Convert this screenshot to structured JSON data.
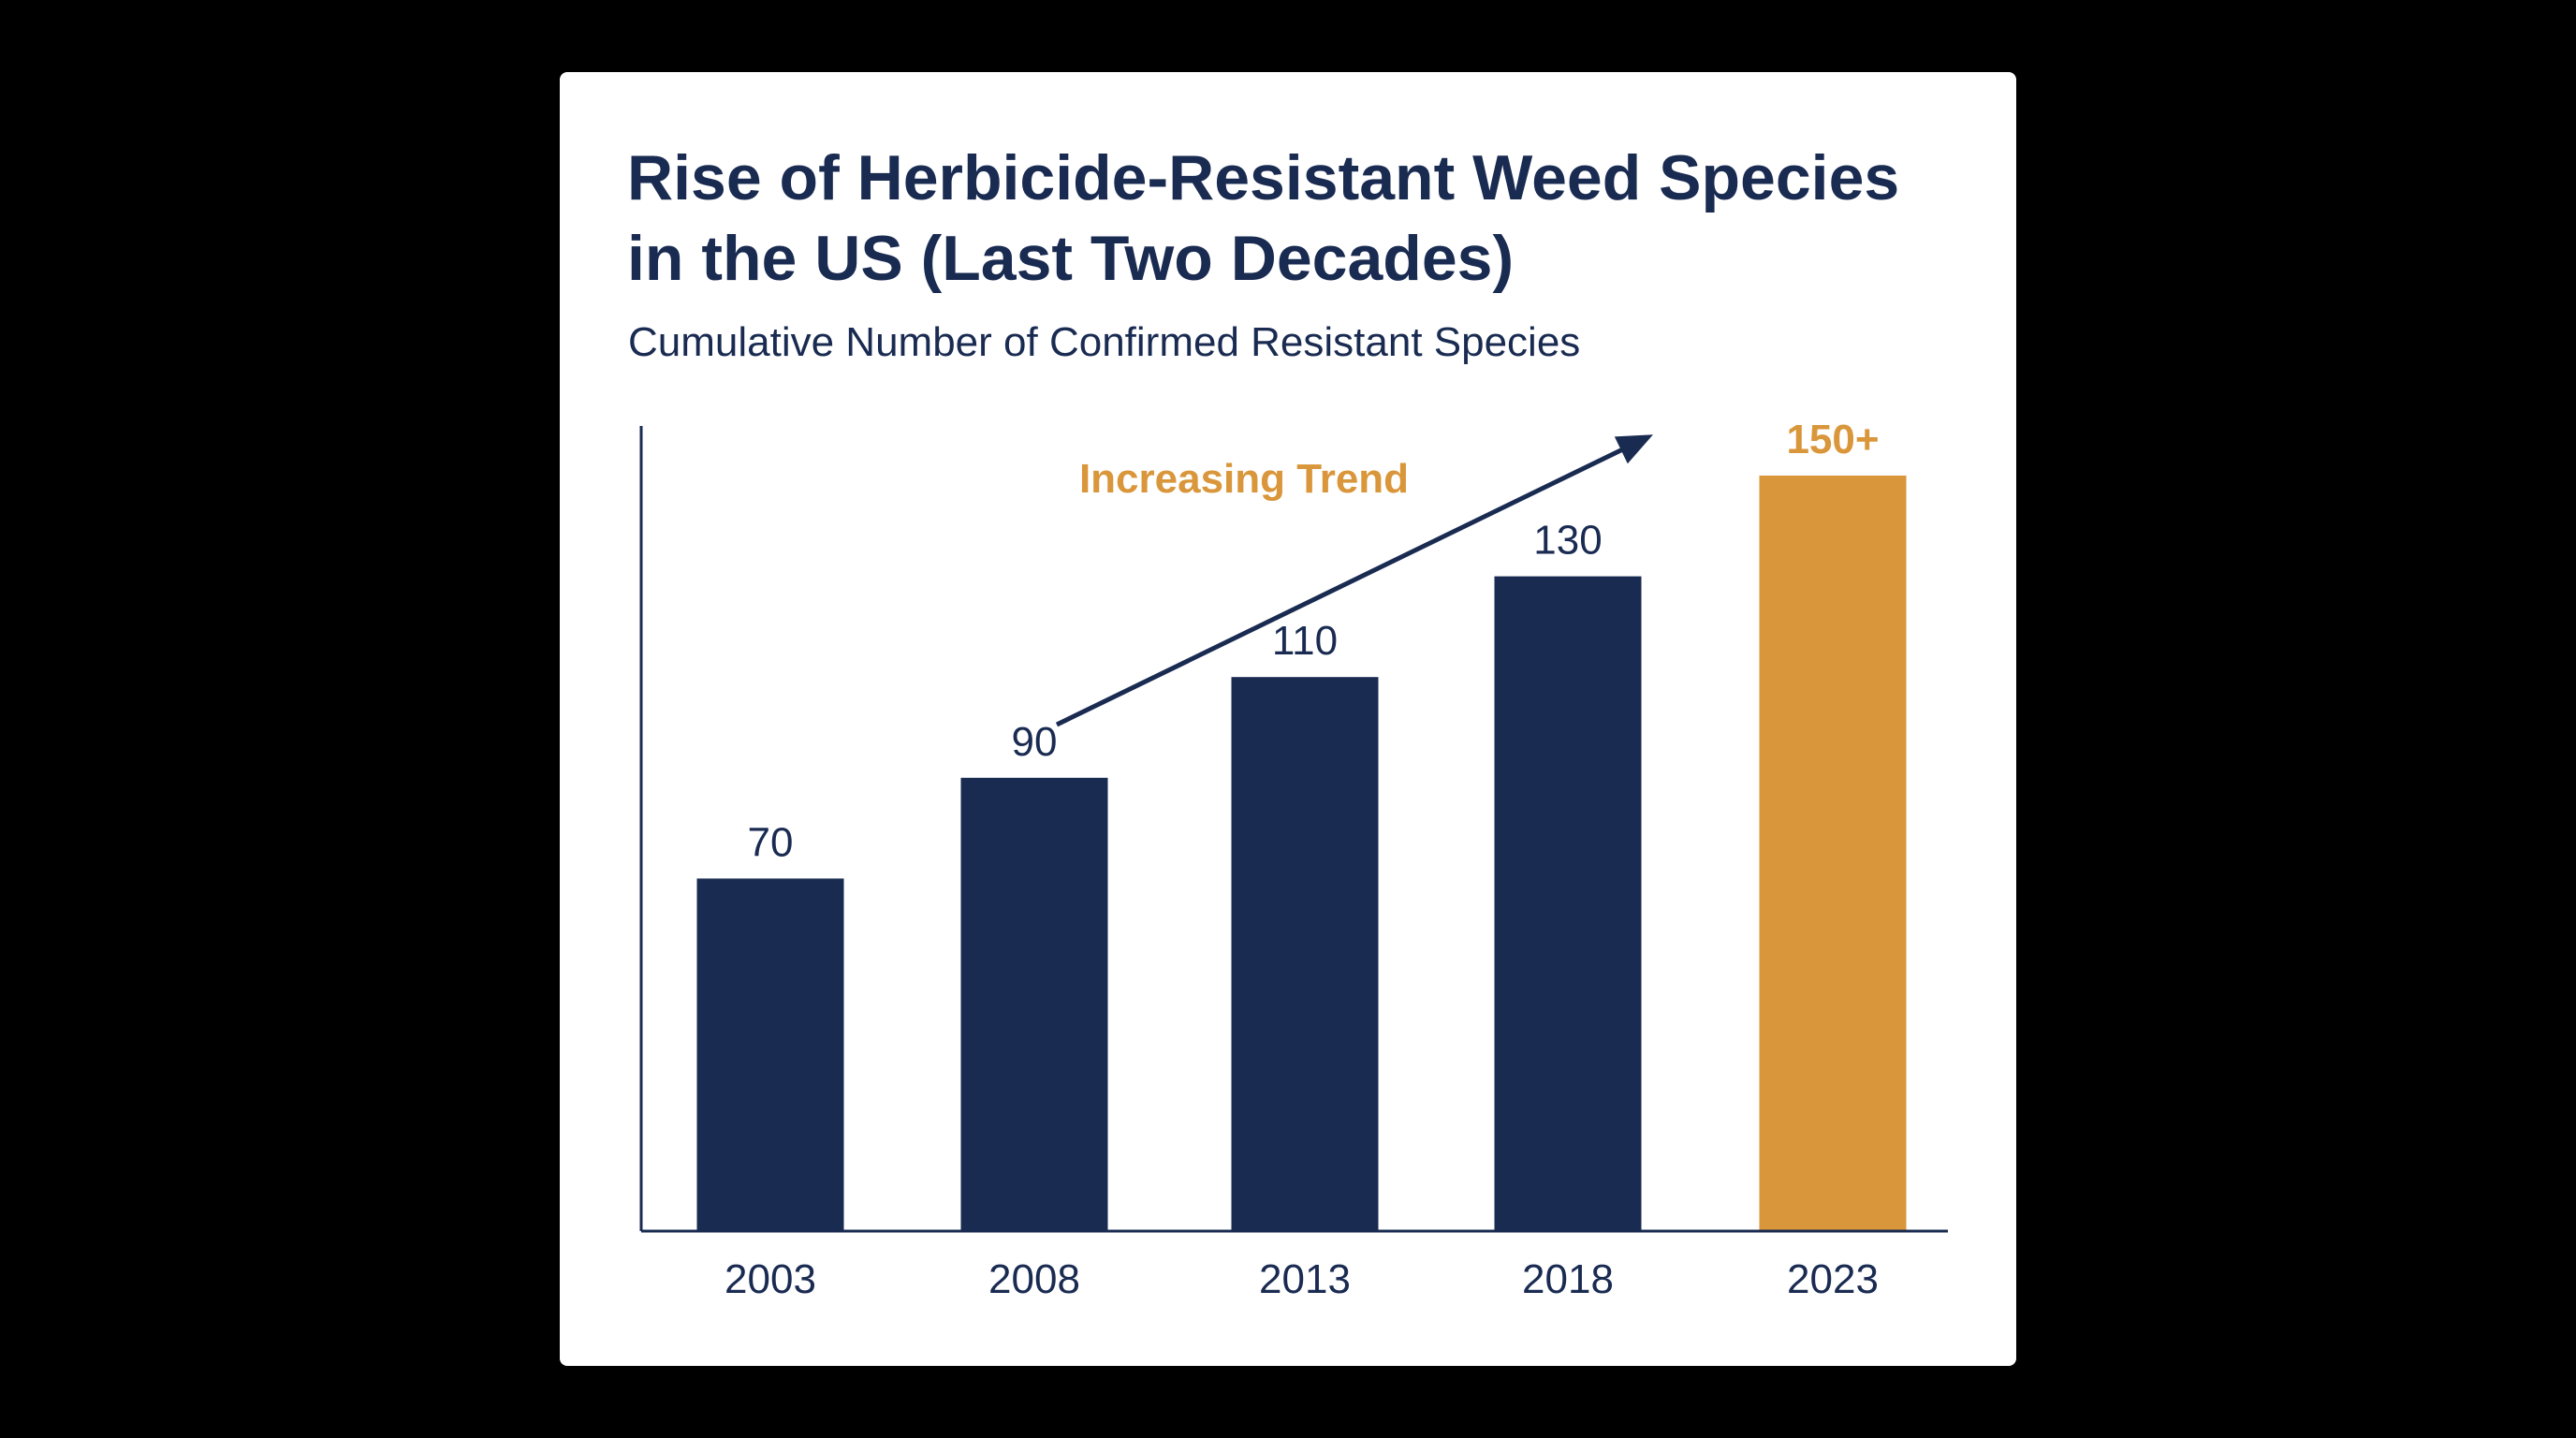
{
  "colors": {
    "background": "#000000",
    "card": "#ffffff",
    "navy": "#1a2b52",
    "accent": "#d9963a"
  },
  "chart_data": {
    "type": "bar",
    "title": "Rise of Herbicide-Resistant Weed Species in the US (Last Two Decades)",
    "subtitle": "Cumulative Number of Confirmed Resistant Species",
    "xlabel": "",
    "ylabel": "",
    "ylim": [
      0,
      160
    ],
    "categories": [
      "2003",
      "2008",
      "2013",
      "2018",
      "2023"
    ],
    "values": [
      70,
      90,
      110,
      130,
      150
    ],
    "value_labels": [
      "70",
      "90",
      "110",
      "130",
      "150+"
    ],
    "highlight": [
      false,
      false,
      false,
      false,
      true
    ],
    "annotation": {
      "text": "Increasing Trend",
      "arrow_from": {
        "category": "2008",
        "value": 108
      },
      "arrow_to": {
        "category": "2023",
        "value": 160
      }
    },
    "grid": false,
    "legend": "none"
  }
}
